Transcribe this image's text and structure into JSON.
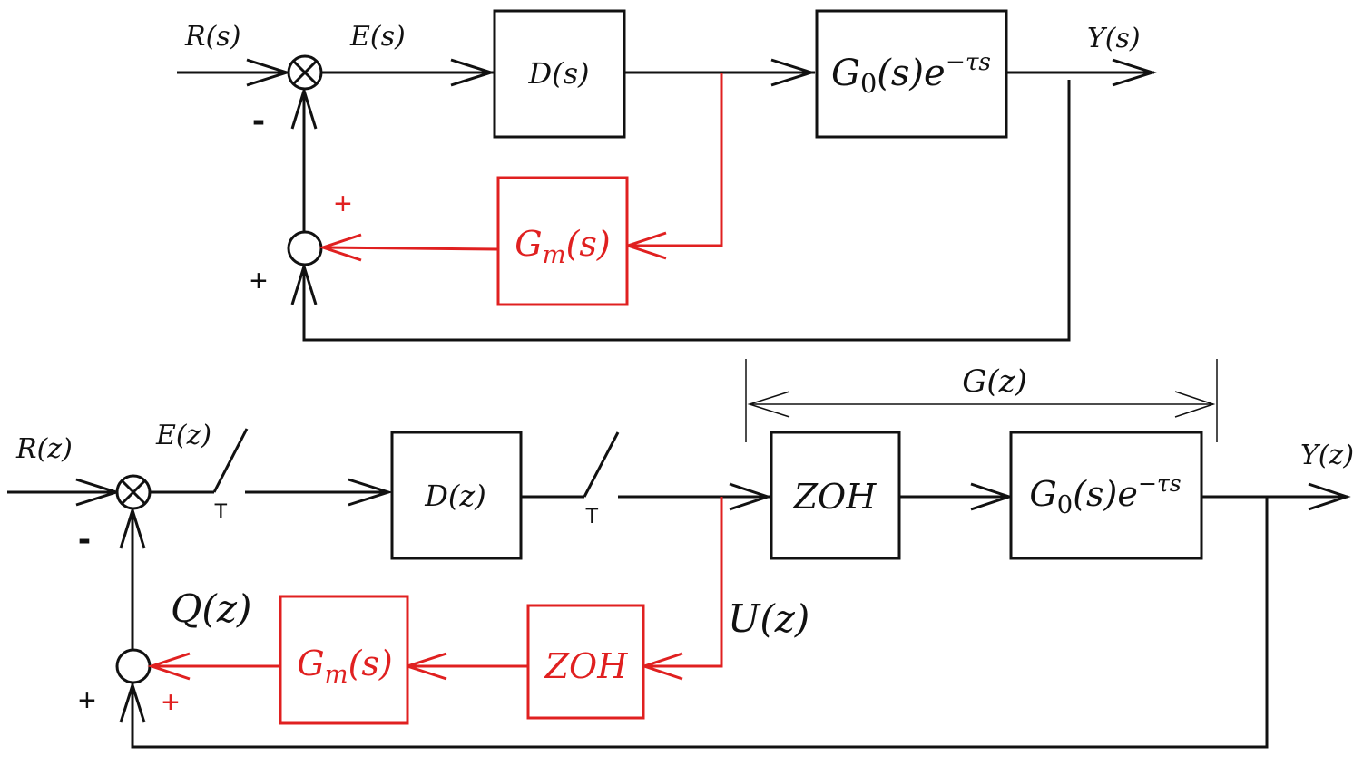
{
  "top_diagram": {
    "labels": {
      "input": "R(s)",
      "error": "E(s)",
      "output": "Y(s)",
      "minus_sign": "-",
      "plus_sign_feedback": "+",
      "plus_sign_model": "+"
    },
    "blocks": {
      "controller": "D(s)",
      "plant_base": "G",
      "plant_sub": "0",
      "plant_mid": "(s)e",
      "plant_sup": "−τs",
      "model_base": "G",
      "model_sub": "m",
      "model_tail": "(s)"
    }
  },
  "bottom_diagram": {
    "labels": {
      "input": "R(z)",
      "error": "E(z)",
      "output": "Y(z)",
      "control": "U(z)",
      "model_out": "Q(z)",
      "span": "G(z)",
      "sampler1": "T",
      "sampler2": "T",
      "minus_sign": "-",
      "plus_sign_feedback": "+",
      "plus_sign_model": "+"
    },
    "blocks": {
      "controller": "D(z)",
      "zoh_main": "ZOH",
      "zoh_model": "ZOH",
      "plant_base": "G",
      "plant_sub": "0",
      "plant_mid": "(s)e",
      "plant_sup": "−τs",
      "model_base": "G",
      "model_sub": "m",
      "model_tail": "(s)"
    }
  },
  "colors": {
    "main_path": "#111111",
    "smith_predictor": "#e02020"
  }
}
